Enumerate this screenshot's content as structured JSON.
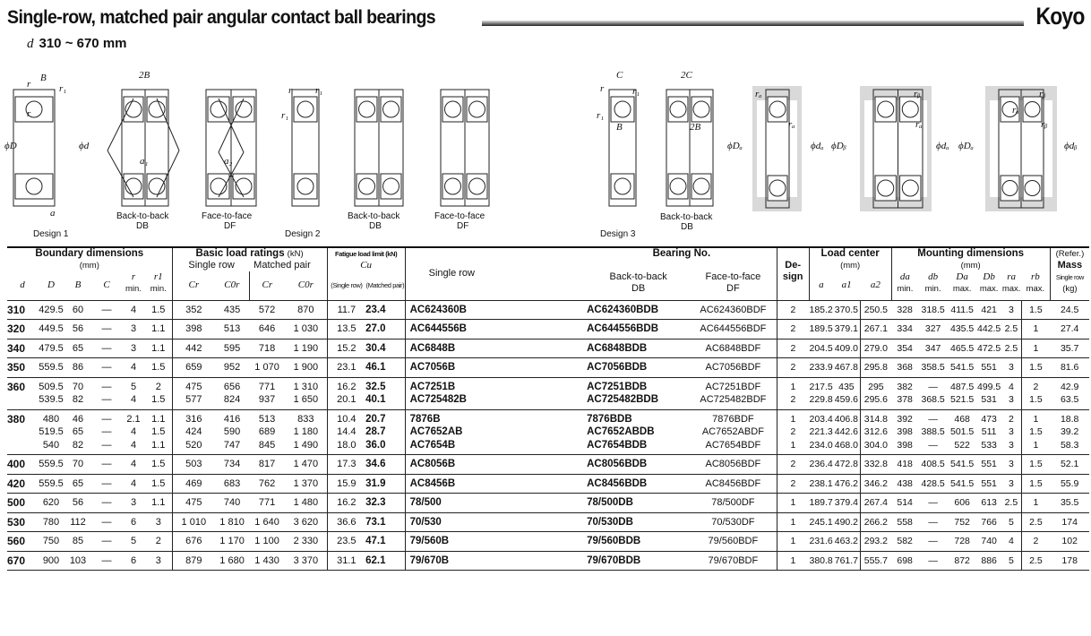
{
  "header": {
    "title": "Single-row, matched pair angular contact ball bearings",
    "brand": "Koyo",
    "subtitle_symbol": "d",
    "subtitle_range": "310 ~ 670 mm"
  },
  "figures": {
    "design1": "Design 1",
    "design2": "Design 2",
    "design3": "Design 3",
    "db1": "Back-to-back",
    "db2": "DB",
    "df1": "Face-to-face",
    "df2": "DF",
    "B": "B",
    "twoB": "2B",
    "C": "C",
    "twoC": "2C",
    "r": "r",
    "r1": "r₁",
    "phiD": "ϕD",
    "phid": "ϕd",
    "a": "a",
    "a1": "a₁",
    "a2": "a₂",
    "ra": "rₐ",
    "rb": "rᵦ",
    "phiDa": "ϕDₐ",
    "phida": "ϕdₐ",
    "phiDb": "ϕDᵦ",
    "phidb": "ϕdᵦ"
  },
  "table": {
    "headers": {
      "boundary": "Boundary dimensions",
      "mm": "(mm)",
      "load_ratings": "Basic load ratings",
      "kN": "(kN)",
      "single_row": "Single row",
      "matched_pair": "Matched pair",
      "fatigue": "Fatigue load limit (kN)",
      "Cu": "Cu",
      "fat_single": "(Single row)",
      "fat_matched": "(Matched pair)",
      "bearing_no": "Bearing No.",
      "bn_single": "Single row",
      "bn_db1": "Back-to-back",
      "bn_db2": "DB",
      "bn_df1": "Face-to-face",
      "bn_df2": "DF",
      "design1": "De-",
      "design2": "sign",
      "load_center": "Load center",
      "mounting": "Mounting dimensions",
      "refer": "(Refer.)",
      "mass": "Mass",
      "mass_single": "Single row",
      "kg": "(kg)",
      "d": "d",
      "D": "D",
      "B": "B",
      "C": "C",
      "r": "r",
      "r1": "r1",
      "min": "min.",
      "max": "max.",
      "Cr": "Cr",
      "C0r": "C0r",
      "a": "a",
      "a1": "a1",
      "a2": "a2",
      "da": "da",
      "db": "db",
      "Da": "Da",
      "Db": "Db",
      "ra": "ra",
      "rb": "rb"
    },
    "rows": [
      {
        "d": "310",
        "sub": [
          [
            "429.5",
            "60",
            "—",
            "4",
            "1.5",
            "352",
            "435",
            "572",
            "870",
            "11.7",
            "23.4",
            "AC624360B",
            "AC624360BDB",
            "AC624360BDF",
            "2",
            "185.2",
            "370.5",
            "250.5",
            "328",
            "318.5",
            "411.5",
            "421",
            "3",
            "1.5",
            "24.5"
          ]
        ]
      },
      {
        "d": "320",
        "sub": [
          [
            "449.5",
            "56",
            "—",
            "3",
            "1.1",
            "398",
            "513",
            "646",
            "1 030",
            "13.5",
            "27.0",
            "AC644556B",
            "AC644556BDB",
            "AC644556BDF",
            "2",
            "189.5",
            "379.1",
            "267.1",
            "334",
            "327",
            "435.5",
            "442.5",
            "2.5",
            "1",
            "27.4"
          ]
        ]
      },
      {
        "d": "340",
        "sub": [
          [
            "479.5",
            "65",
            "—",
            "3",
            "1.1",
            "442",
            "595",
            "718",
            "1 190",
            "15.2",
            "30.4",
            "AC6848B",
            "AC6848BDB",
            "AC6848BDF",
            "2",
            "204.5",
            "409.0",
            "279.0",
            "354",
            "347",
            "465.5",
            "472.5",
            "2.5",
            "1",
            "35.7"
          ]
        ]
      },
      {
        "d": "350",
        "sub": [
          [
            "559.5",
            "86",
            "—",
            "4",
            "1.5",
            "659",
            "952",
            "1 070",
            "1 900",
            "23.1",
            "46.1",
            "AC7056B",
            "AC7056BDB",
            "AC7056BDF",
            "2",
            "233.9",
            "467.8",
            "295.8",
            "368",
            "358.5",
            "541.5",
            "551",
            "3",
            "1.5",
            "81.6"
          ]
        ]
      },
      {
        "d": "360",
        "sub": [
          [
            "509.5",
            "70",
            "—",
            "5",
            "2",
            "475",
            "656",
            "771",
            "1 310",
            "16.2",
            "32.5",
            "AC7251B",
            "AC7251BDB",
            "AC7251BDF",
            "1",
            "217.5",
            "435",
            "295",
            "382",
            "—",
            "487.5",
            "499.5",
            "4",
            "2",
            "42.9"
          ],
          [
            "539.5",
            "82",
            "—",
            "4",
            "1.5",
            "577",
            "824",
            "937",
            "1 650",
            "20.1",
            "40.1",
            "AC725482B",
            "AC725482BDB",
            "AC725482BDF",
            "2",
            "229.8",
            "459.6",
            "295.6",
            "378",
            "368.5",
            "521.5",
            "531",
            "3",
            "1.5",
            "63.5"
          ]
        ]
      },
      {
        "d": "380",
        "sub": [
          [
            "480",
            "46",
            "—",
            "2.1",
            "1.1",
            "316",
            "416",
            "513",
            "833",
            "10.4",
            "20.7",
            "7876B",
            "7876BDB",
            "7876BDF",
            "1",
            "203.4",
            "406.8",
            "314.8",
            "392",
            "—",
            "468",
            "473",
            "2",
            "1",
            "18.8"
          ],
          [
            "519.5",
            "65",
            "—",
            "4",
            "1.5",
            "424",
            "590",
            "689",
            "1 180",
            "14.4",
            "28.7",
            "AC7652AB",
            "AC7652ABDB",
            "AC7652ABDF",
            "2",
            "221.3",
            "442.6",
            "312.6",
            "398",
            "388.5",
            "501.5",
            "511",
            "3",
            "1.5",
            "39.2"
          ],
          [
            "540",
            "82",
            "—",
            "4",
            "1.1",
            "520",
            "747",
            "845",
            "1 490",
            "18.0",
            "36.0",
            "AC7654B",
            "AC7654BDB",
            "AC7654BDF",
            "1",
            "234.0",
            "468.0",
            "304.0",
            "398",
            "—",
            "522",
            "533",
            "3",
            "1",
            "58.3"
          ]
        ]
      },
      {
        "d": "400",
        "sub": [
          [
            "559.5",
            "70",
            "—",
            "4",
            "1.5",
            "503",
            "734",
            "817",
            "1 470",
            "17.3",
            "34.6",
            "AC8056B",
            "AC8056BDB",
            "AC8056BDF",
            "2",
            "236.4",
            "472.8",
            "332.8",
            "418",
            "408.5",
            "541.5",
            "551",
            "3",
            "1.5",
            "52.1"
          ]
        ]
      },
      {
        "d": "420",
        "sub": [
          [
            "559.5",
            "65",
            "—",
            "4",
            "1.5",
            "469",
            "683",
            "762",
            "1 370",
            "15.9",
            "31.9",
            "AC8456B",
            "AC8456BDB",
            "AC8456BDF",
            "2",
            "238.1",
            "476.2",
            "346.2",
            "438",
            "428.5",
            "541.5",
            "551",
            "3",
            "1.5",
            "55.9"
          ]
        ]
      },
      {
        "d": "500",
        "sub": [
          [
            "620",
            "56",
            "—",
            "3",
            "1.1",
            "475",
            "740",
            "771",
            "1 480",
            "16.2",
            "32.3",
            "78/500",
            "78/500DB",
            "78/500DF",
            "1",
            "189.7",
            "379.4",
            "267.4",
            "514",
            "—",
            "606",
            "613",
            "2.5",
            "1",
            "35.5"
          ]
        ]
      },
      {
        "d": "530",
        "sub": [
          [
            "780",
            "112",
            "—",
            "6",
            "3",
            "1 010",
            "1 810",
            "1 640",
            "3 620",
            "36.6",
            "73.1",
            "70/530",
            "70/530DB",
            "70/530DF",
            "1",
            "245.1",
            "490.2",
            "266.2",
            "558",
            "—",
            "752",
            "766",
            "5",
            "2.5",
            "174"
          ]
        ]
      },
      {
        "d": "560",
        "sub": [
          [
            "750",
            "85",
            "—",
            "5",
            "2",
            "676",
            "1 170",
            "1 100",
            "2 330",
            "23.5",
            "47.1",
            "79/560B",
            "79/560BDB",
            "79/560BDF",
            "1",
            "231.6",
            "463.2",
            "293.2",
            "582",
            "—",
            "728",
            "740",
            "4",
            "2",
            "102"
          ]
        ]
      },
      {
        "d": "670",
        "sub": [
          [
            "900",
            "103",
            "—",
            "6",
            "3",
            "879",
            "1 680",
            "1 430",
            "3 370",
            "31.1",
            "62.1",
            "79/670B",
            "79/670BDB",
            "79/670BDF",
            "1",
            "380.8",
            "761.7",
            "555.7",
            "698",
            "—",
            "872",
            "886",
            "5",
            "2.5",
            "178"
          ]
        ]
      }
    ]
  }
}
